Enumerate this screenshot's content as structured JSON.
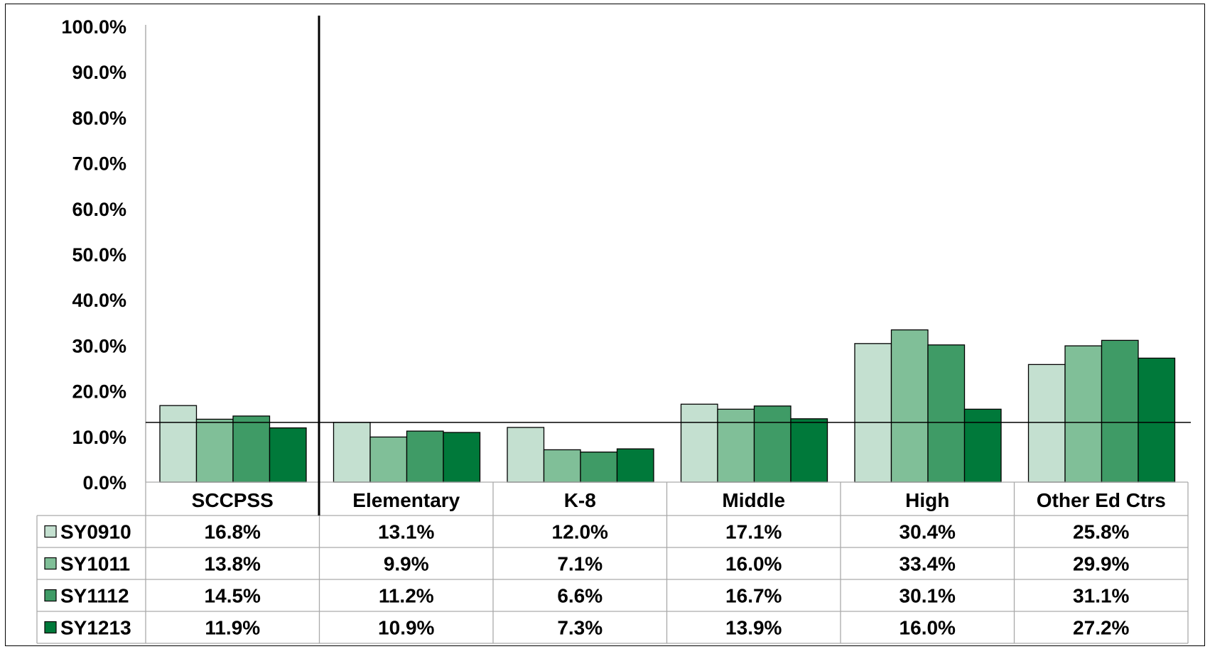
{
  "chart_data": {
    "type": "bar",
    "title": "",
    "xlabel": "",
    "ylabel": "",
    "ylim": [
      0,
      100
    ],
    "y_ticks": [
      "0.0%",
      "10.0%",
      "20.0%",
      "30.0%",
      "40.0%",
      "50.0%",
      "60.0%",
      "70.0%",
      "80.0%",
      "90.0%",
      "100.0%"
    ],
    "categories": [
      "SCCPSS",
      "Elementary",
      "K-8",
      "Middle",
      "High",
      "Other Ed Ctrs"
    ],
    "series": [
      {
        "name": "SY0910",
        "color": "#c4e0d0",
        "values": [
          16.8,
          13.1,
          12.0,
          17.1,
          30.4,
          25.8
        ],
        "labels": [
          "16.8%",
          "13.1%",
          "12.0%",
          "17.1%",
          "30.4%",
          "25.8%"
        ]
      },
      {
        "name": "SY1011",
        "color": "#80bf98",
        "values": [
          13.8,
          9.9,
          7.1,
          16.0,
          33.4,
          29.9
        ],
        "labels": [
          "13.8%",
          "9.9%",
          "7.1%",
          "16.0%",
          "33.4%",
          "29.9%"
        ]
      },
      {
        "name": "SY1112",
        "color": "#3f9b66",
        "values": [
          14.5,
          11.2,
          6.6,
          16.7,
          30.1,
          31.1
        ],
        "labels": [
          "14.5%",
          "11.2%",
          "6.6%",
          "16.7%",
          "30.1%",
          "31.1%"
        ]
      },
      {
        "name": "SY1213",
        "color": "#00793a",
        "values": [
          11.9,
          10.9,
          7.3,
          13.9,
          16.0,
          27.2
        ],
        "labels": [
          "11.9%",
          "10.9%",
          "7.3%",
          "13.9%",
          "16.0%",
          "27.2%"
        ]
      }
    ],
    "reference_line": 13.1,
    "grid": false,
    "legend": "data table rows"
  }
}
